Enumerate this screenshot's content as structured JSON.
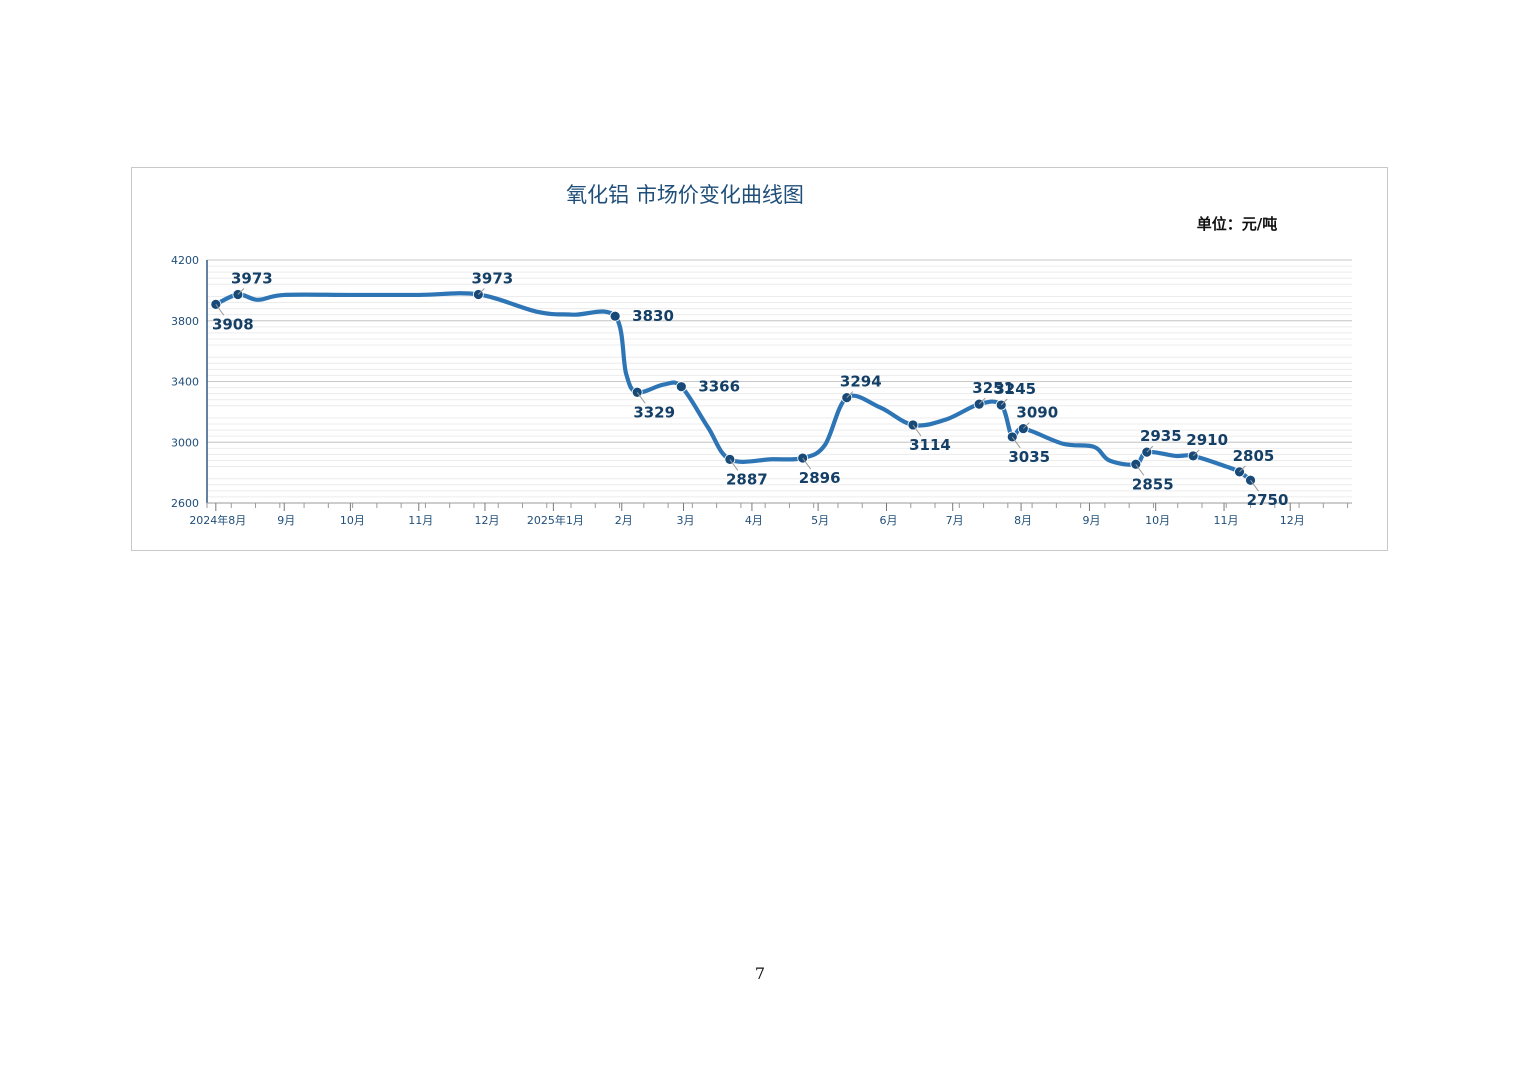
{
  "page": {
    "page_number": "7"
  },
  "chart_data": {
    "type": "line",
    "title": "氧化铝 市场价变化曲线图",
    "unit": "单位：元/吨",
    "xlabel": "",
    "ylabel": "",
    "ylim": [
      2600,
      4200
    ],
    "yticks": [
      "4200",
      "3800",
      "3400",
      "3000",
      "2600"
    ],
    "ytick_values": [
      4200,
      3800,
      3400,
      3000,
      2600
    ],
    "grid": true,
    "xlim": [
      "2024-07-28",
      "2025-12-29"
    ],
    "month_ticks": [
      {
        "label": "2024年8月",
        "date": "2024-08-01"
      },
      {
        "label": "9月",
        "date": "2024-09-01"
      },
      {
        "label": "10月",
        "date": "2024-10-01"
      },
      {
        "label": "11月",
        "date": "2024-11-01"
      },
      {
        "label": "12月",
        "date": "2024-12-01"
      },
      {
        "label": "2025年1月",
        "date": "2025-01-01"
      },
      {
        "label": "2月",
        "date": "2025-02-01"
      },
      {
        "label": "3月",
        "date": "2025-03-01"
      },
      {
        "label": "4月",
        "date": "2025-04-01"
      },
      {
        "label": "5月",
        "date": "2025-05-01"
      },
      {
        "label": "6月",
        "date": "2025-06-01"
      },
      {
        "label": "7月",
        "date": "2025-07-01"
      },
      {
        "label": "8月",
        "date": "2025-08-01"
      },
      {
        "label": "9月",
        "date": "2025-09-01"
      },
      {
        "label": "10月",
        "date": "2025-10-01"
      },
      {
        "label": "11月",
        "date": "2025-11-01"
      },
      {
        "label": "12月",
        "date": "2025-12-01"
      }
    ],
    "series": [
      {
        "color": "#2e75b6",
        "marker_color": "#174a78",
        "points": [
          {
            "date": "2024-08-01",
            "value": 3908,
            "label": "3908",
            "label_pos": "below"
          },
          {
            "date": "2024-08-11",
            "value": 3973,
            "label": "3973",
            "label_pos": "above"
          },
          {
            "date": "2024-08-20",
            "value": 3938
          },
          {
            "date": "2024-09-01",
            "value": 3970
          },
          {
            "date": "2024-10-01",
            "value": 3970
          },
          {
            "date": "2024-11-01",
            "value": 3970
          },
          {
            "date": "2024-11-28",
            "value": 3973,
            "label": "3973",
            "label_pos": "above"
          },
          {
            "date": "2024-12-25",
            "value": 3858
          },
          {
            "date": "2025-01-10",
            "value": 3840
          },
          {
            "date": "2025-01-29",
            "value": 3830,
            "label": "3830",
            "label_pos": "right"
          },
          {
            "date": "2025-02-03",
            "value": 3450
          },
          {
            "date": "2025-02-08",
            "value": 3329,
            "label": "3329",
            "label_pos": "below"
          },
          {
            "date": "2025-02-20",
            "value": 3380
          },
          {
            "date": "2025-02-28",
            "value": 3366,
            "label": "3366",
            "label_pos": "right"
          },
          {
            "date": "2025-03-12",
            "value": 3100
          },
          {
            "date": "2025-03-22",
            "value": 2887,
            "label": "2887",
            "label_pos": "below"
          },
          {
            "date": "2025-04-10",
            "value": 2888
          },
          {
            "date": "2025-04-24",
            "value": 2896,
            "label": "2896",
            "label_pos": "below"
          },
          {
            "date": "2025-05-04",
            "value": 2980
          },
          {
            "date": "2025-05-14",
            "value": 3294,
            "label": "3294",
            "label_pos": "above"
          },
          {
            "date": "2025-05-29",
            "value": 3230
          },
          {
            "date": "2025-06-13",
            "value": 3114,
            "label": "3114",
            "label_pos": "below"
          },
          {
            "date": "2025-06-28",
            "value": 3150
          },
          {
            "date": "2025-07-13",
            "value": 3251,
            "label": "3251",
            "label_pos": "above"
          },
          {
            "date": "2025-07-23",
            "value": 3245,
            "label": "3245",
            "label_pos": "above"
          },
          {
            "date": "2025-07-28",
            "value": 3035,
            "label": "3035",
            "label_pos": "below"
          },
          {
            "date": "2025-08-02",
            "value": 3090,
            "label": "3090",
            "label_pos": "above"
          },
          {
            "date": "2025-08-20",
            "value": 2990
          },
          {
            "date": "2025-09-03",
            "value": 2970
          },
          {
            "date": "2025-09-10",
            "value": 2880
          },
          {
            "date": "2025-09-22",
            "value": 2855,
            "label": "2855",
            "label_pos": "below"
          },
          {
            "date": "2025-09-27",
            "value": 2935,
            "label": "2935",
            "label_pos": "above"
          },
          {
            "date": "2025-10-10",
            "value": 2910
          },
          {
            "date": "2025-10-18",
            "value": 2910,
            "label": "2910",
            "label_pos": "above"
          },
          {
            "date": "2025-11-02",
            "value": 2840
          },
          {
            "date": "2025-11-08",
            "value": 2805,
            "label": "2805",
            "label_pos": "above"
          },
          {
            "date": "2025-11-13",
            "value": 2750,
            "label": "2750",
            "label_pos": "below"
          }
        ]
      }
    ]
  }
}
